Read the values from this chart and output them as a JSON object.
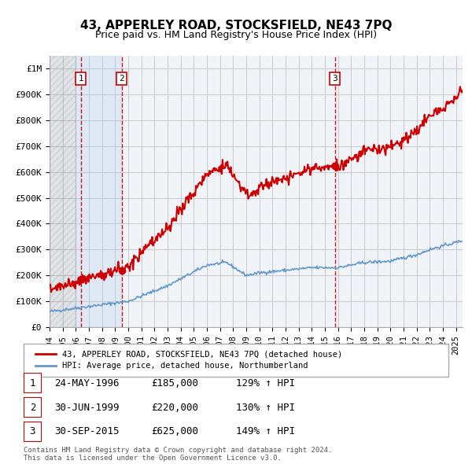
{
  "title": "43, APPERLEY ROAD, STOCKSFIELD, NE43 7PQ",
  "subtitle": "Price paid vs. HM Land Registry's House Price Index (HPI)",
  "xlim": [
    1994.0,
    2025.5
  ],
  "ylim": [
    0,
    1050000
  ],
  "yticks": [
    0,
    100000,
    200000,
    300000,
    400000,
    500000,
    600000,
    700000,
    800000,
    900000,
    1000000
  ],
  "ytick_labels": [
    "£0",
    "£100K",
    "£200K",
    "£300K",
    "£400K",
    "£500K",
    "£600K",
    "£700K",
    "£800K",
    "£900K",
    "£1M"
  ],
  "sale_dates": [
    1996.38,
    1999.5,
    2015.75
  ],
  "sale_prices": [
    185000,
    220000,
    625000
  ],
  "sale_labels": [
    "1",
    "2",
    "3"
  ],
  "vline_color": "#cc0000",
  "sale_dot_color": "#cc0000",
  "hpi_line_color": "#6699cc",
  "price_line_color": "#cc0000",
  "grid_color": "#cccccc",
  "bg_color": "#f0f4f8",
  "legend_label_price": "43, APPERLEY ROAD, STOCKSFIELD, NE43 7PQ (detached house)",
  "legend_label_hpi": "HPI: Average price, detached house, Northumberland",
  "table_rows": [
    [
      "1",
      "24-MAY-1996",
      "£185,000",
      "129% ↑ HPI"
    ],
    [
      "2",
      "30-JUN-1999",
      "£220,000",
      "130% ↑ HPI"
    ],
    [
      "3",
      "30-SEP-2015",
      "£625,000",
      "149% ↑ HPI"
    ]
  ],
  "footer": "Contains HM Land Registry data © Crown copyright and database right 2024.\nThis data is licensed under the Open Government Licence v3.0.",
  "xtick_years": [
    1994,
    1995,
    1996,
    1997,
    1998,
    1999,
    2000,
    2001,
    2002,
    2003,
    2004,
    2005,
    2006,
    2007,
    2008,
    2009,
    2010,
    2011,
    2012,
    2013,
    2014,
    2015,
    2016,
    2017,
    2018,
    2019,
    2020,
    2021,
    2022,
    2023,
    2024,
    2025
  ]
}
